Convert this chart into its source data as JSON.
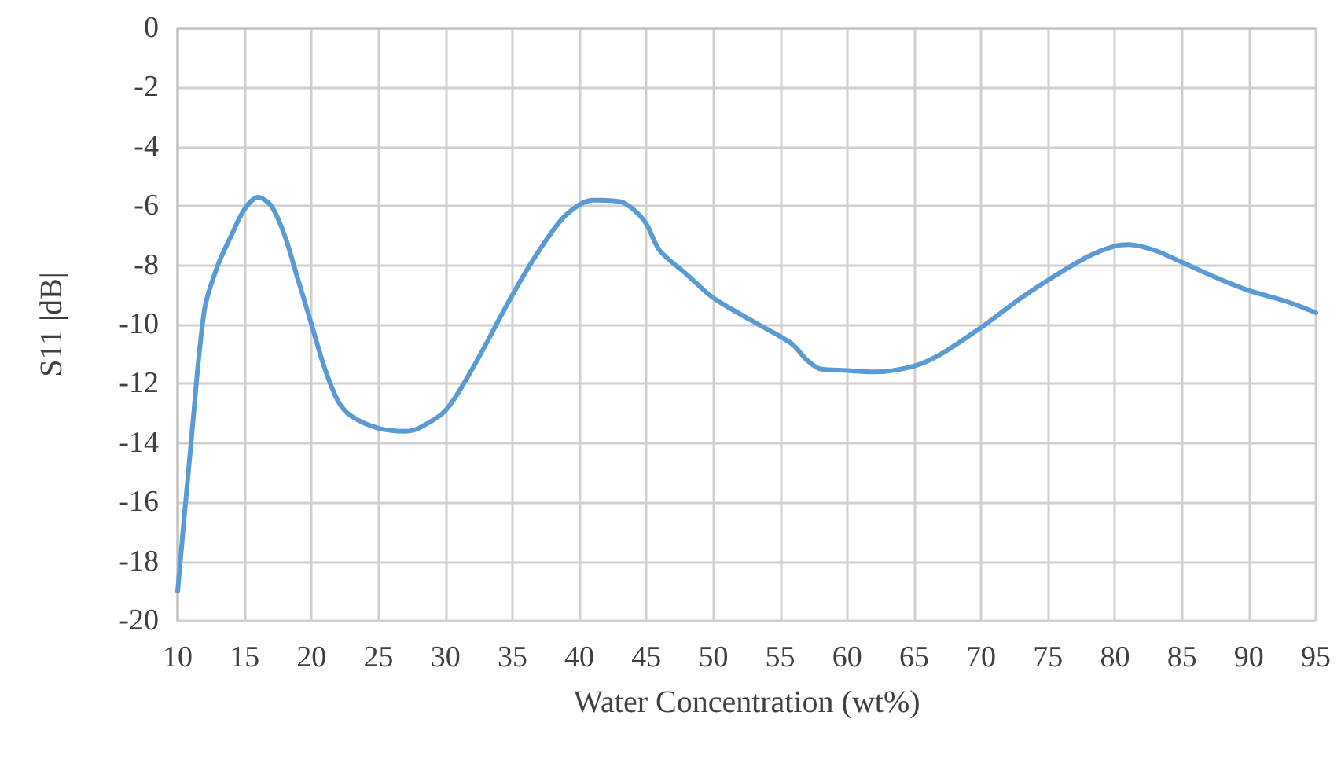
{
  "chart_data": {
    "type": "line",
    "xlabel": "Water Concentration (wt%)",
    "ylabel": "S11 |dB|",
    "x": [
      10,
      11,
      12,
      13,
      14,
      15,
      16,
      17,
      18,
      19,
      20,
      21,
      22,
      23,
      25,
      27,
      28,
      30,
      32,
      35,
      37,
      39,
      41,
      43,
      44,
      45,
      46,
      48,
      50,
      53,
      55,
      56,
      57,
      58,
      60,
      62,
      65,
      67,
      70,
      73,
      75,
      78,
      80,
      81,
      83,
      85,
      88,
      90,
      93,
      95
    ],
    "series": [
      {
        "color": "#5b9bd5",
        "values": [
          -19,
          -14,
          -9.5,
          -8,
          -7,
          -6.1,
          -5.7,
          -6,
          -7,
          -8.5,
          -10,
          -11.5,
          -12.6,
          -13.1,
          -13.5,
          -13.6,
          -13.5,
          -12.9,
          -11.5,
          -9,
          -7.5,
          -6.3,
          -5.8,
          -5.85,
          -6.1,
          -6.6,
          -7.5,
          -8.3,
          -9.1,
          -9.9,
          -10.4,
          -10.7,
          -11.2,
          -11.5,
          -11.55,
          -11.6,
          -11.4,
          -11,
          -10.1,
          -9.1,
          -8.5,
          -7.7,
          -7.35,
          -7.3,
          -7.5,
          -7.9,
          -8.5,
          -8.85,
          -9.25,
          -9.6
        ]
      }
    ],
    "xlim": [
      10,
      95
    ],
    "xticks": [
      10,
      15,
      20,
      25,
      30,
      35,
      40,
      45,
      50,
      55,
      60,
      65,
      70,
      75,
      80,
      85,
      90,
      95
    ],
    "ylim": [
      -20,
      0
    ],
    "yticks": [
      -20,
      -18,
      -16,
      -14,
      -12,
      -10,
      -8,
      -6,
      -4,
      -2,
      0
    ],
    "grid": true,
    "line_style": "solid",
    "marker": "none"
  }
}
